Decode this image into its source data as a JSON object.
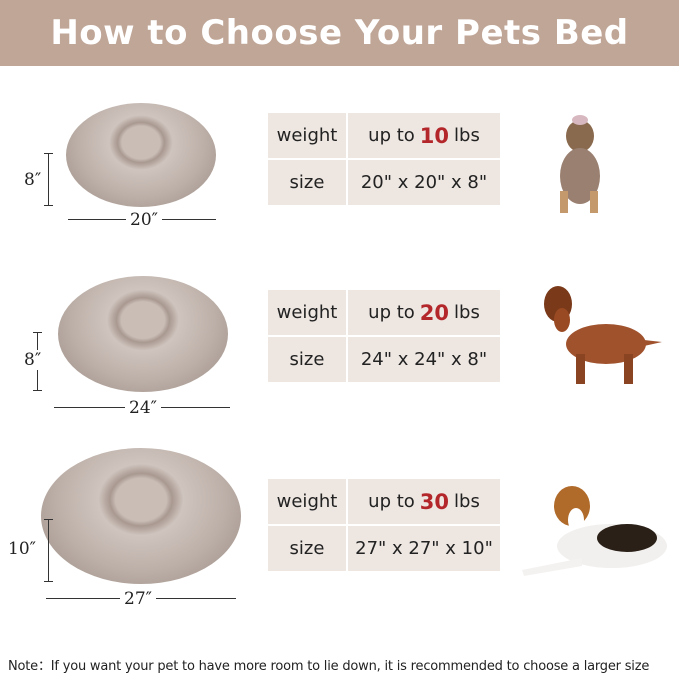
{
  "title": "How to Choose Your Pets Bed",
  "rows": [
    {
      "height": "8″",
      "width": "20″",
      "weight_label": "weight",
      "weight_prefix": "up to",
      "weight_value": "10",
      "weight_unit": "lbs",
      "size_label": "size",
      "size_value": "20\" x 20\" x 8\"",
      "dog": "yorkshire-terrier"
    },
    {
      "height": "8″",
      "width": "24″",
      "weight_label": "weight",
      "weight_prefix": "up to",
      "weight_value": "20",
      "weight_unit": "lbs",
      "size_label": "size",
      "size_value": "24\" x 24\" x 8\"",
      "dog": "dachshund"
    },
    {
      "height": "10″",
      "width": "27″",
      "weight_label": "weight",
      "weight_prefix": "up to",
      "weight_value": "30",
      "weight_unit": "lbs",
      "size_label": "size",
      "size_value": "27\" x 27\" x 10\"",
      "dog": "beagle"
    }
  ],
  "note": "Note：If you want your pet to have more room to lie down, it is recommended to choose a larger size",
  "colors": {
    "header": "#c0a697",
    "highlight": "#b3262a",
    "cell": "#ede6e1"
  }
}
